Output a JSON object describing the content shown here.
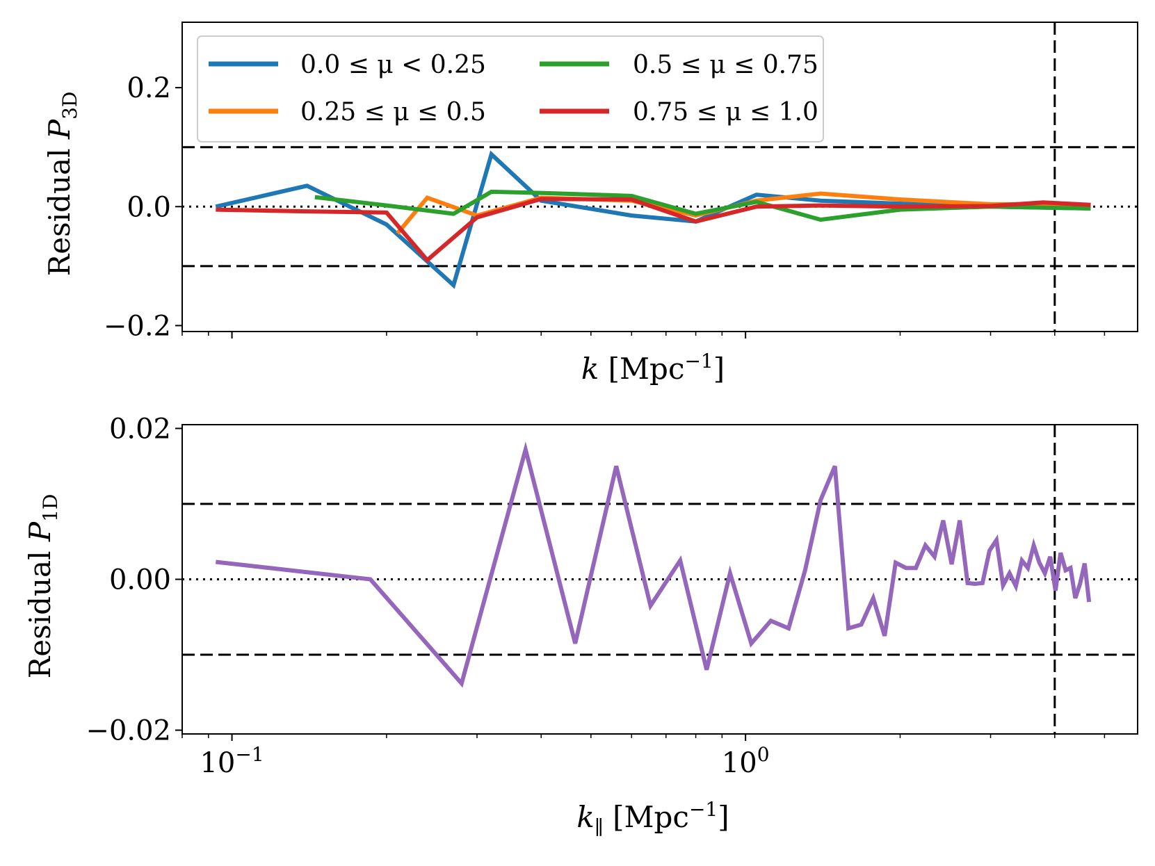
{
  "chart_data": [
    {
      "type": "line",
      "panel": "top",
      "ylabel_main": "Residual ",
      "ylabel_var": "P",
      "ylabel_sub": "3D",
      "xlabel_var": "k",
      "xlabel_unit": " [Mpc",
      "xlabel_exp": "−1",
      "xlabel_close": "]",
      "xscale": "log",
      "xlim": [
        0.08,
        5.8
      ],
      "ylim": [
        -0.21,
        0.31
      ],
      "yticks": [
        {
          "value": 0.2,
          "label": "0.2"
        },
        {
          "value": 0.0,
          "label": "0.0"
        },
        {
          "value": -0.2,
          "label": "−0.2"
        }
      ],
      "hlines_dashed": [
        0.1,
        -0.1
      ],
      "hline_dotted": 0.0,
      "vline_dashed": 4.0,
      "legend_location": "upper-left",
      "legend": [
        {
          "label": "0.0 ≤ μ < 0.25"
        },
        {
          "label": "0.25 ≤ μ ≤ 0.5"
        },
        {
          "label": "0.5 ≤ μ ≤ 0.75"
        },
        {
          "label": "0.75 ≤ μ ≤ 1.0"
        }
      ],
      "series": [
        {
          "name": "0.0 ≤ μ < 0.25",
          "color": "#1f77b4",
          "x": [
            0.093,
            0.14,
            0.2,
            0.27,
            0.32,
            0.4,
            0.6,
            0.8,
            1.05,
            1.4,
            2.0,
            3.0,
            4.0,
            4.7
          ],
          "y": [
            0.0,
            0.035,
            -0.03,
            -0.132,
            0.088,
            0.01,
            -0.015,
            -0.025,
            0.02,
            0.01,
            0.005,
            0.0,
            -0.002,
            -0.003
          ]
        },
        {
          "name": "0.25 ≤ μ ≤ 0.5",
          "color": "#ff7f0e",
          "x": [
            0.21,
            0.24,
            0.3,
            0.4,
            0.6,
            0.8,
            1.05,
            1.4,
            2.0,
            3.0,
            4.0,
            4.7
          ],
          "y": [
            -0.045,
            0.015,
            -0.015,
            0.015,
            0.01,
            -0.015,
            0.01,
            0.022,
            0.012,
            0.004,
            0.004,
            0.002
          ]
        },
        {
          "name": "0.5 ≤ μ ≤ 0.75",
          "color": "#2ca02c",
          "x": [
            0.145,
            0.2,
            0.27,
            0.32,
            0.4,
            0.6,
            0.8,
            1.05,
            1.4,
            2.0,
            3.0,
            4.0,
            4.7
          ],
          "y": [
            0.016,
            0.002,
            -0.012,
            0.025,
            0.023,
            0.018,
            -0.012,
            0.008,
            -0.022,
            -0.005,
            0.0,
            -0.002,
            -0.003
          ]
        },
        {
          "name": "0.75 ≤ μ ≤ 1.0",
          "color": "#d62728",
          "x": [
            0.093,
            0.14,
            0.2,
            0.24,
            0.3,
            0.4,
            0.6,
            0.8,
            1.05,
            1.4,
            2.0,
            3.0,
            3.8,
            4.7
          ],
          "y": [
            -0.005,
            -0.008,
            -0.01,
            -0.09,
            -0.018,
            0.013,
            0.012,
            -0.025,
            0.0,
            0.002,
            0.0,
            0.001,
            0.007,
            0.003
          ]
        }
      ]
    },
    {
      "type": "line",
      "panel": "bottom",
      "ylabel_main": "Residual ",
      "ylabel_var": "P",
      "ylabel_sub": "1D",
      "xlabel_var": "k",
      "xlabel_sub": "∥",
      "xlabel_unit": " [Mpc",
      "xlabel_exp": "−1",
      "xlabel_close": "]",
      "xscale": "log",
      "xlim": [
        0.08,
        5.8
      ],
      "ylim": [
        -0.0205,
        0.0205
      ],
      "xticks": [
        {
          "value": 0.1,
          "base": "10",
          "exp": "−1"
        },
        {
          "value": 1.0,
          "base": "10",
          "exp": "0"
        }
      ],
      "yticks": [
        {
          "value": 0.02,
          "label": "0.02"
        },
        {
          "value": 0.0,
          "label": "0.00"
        },
        {
          "value": -0.02,
          "label": "−0.02"
        }
      ],
      "hlines_dashed": [
        0.01,
        -0.01
      ],
      "hline_dotted": 0.0,
      "vline_dashed": 4.0,
      "series": [
        {
          "name": "P1D residual",
          "color": "#9467bd",
          "x": [
            0.093,
            0.186,
            0.28,
            0.373,
            0.466,
            0.56,
            0.653,
            0.746,
            0.84,
            0.933,
            1.026,
            1.12,
            1.213,
            1.306,
            1.4,
            1.493,
            1.586,
            1.68,
            1.773,
            1.866,
            1.96,
            2.053,
            2.146,
            2.24,
            2.333,
            2.426,
            2.52,
            2.613,
            2.706,
            2.8,
            2.893,
            2.986,
            3.08,
            3.173,
            3.266,
            3.36,
            3.453,
            3.546,
            3.64,
            3.733,
            3.826,
            3.92,
            4.013,
            4.106,
            4.2,
            4.293,
            4.386,
            4.48,
            4.573,
            4.666
          ],
          "y": [
            0.0023,
            0.0,
            -0.0138,
            0.0172,
            -0.0085,
            0.015,
            -0.0035,
            0.0025,
            -0.012,
            0.0008,
            -0.0085,
            -0.0055,
            -0.0065,
            0.0012,
            0.0105,
            0.015,
            -0.0065,
            -0.006,
            -0.0025,
            -0.0075,
            0.0022,
            0.0015,
            0.0015,
            0.0045,
            0.003,
            0.0078,
            0.002,
            0.0078,
            -0.0005,
            -0.0006,
            -0.0005,
            0.0038,
            0.0052,
            -0.0008,
            0.0008,
            -0.0009,
            0.0025,
            0.0015,
            0.0045,
            0.0022,
            0.0008,
            0.003,
            -0.0015,
            0.0035,
            0.0012,
            0.0015,
            -0.0025,
            -0.0006,
            0.0021,
            -0.003
          ]
        }
      ]
    }
  ]
}
